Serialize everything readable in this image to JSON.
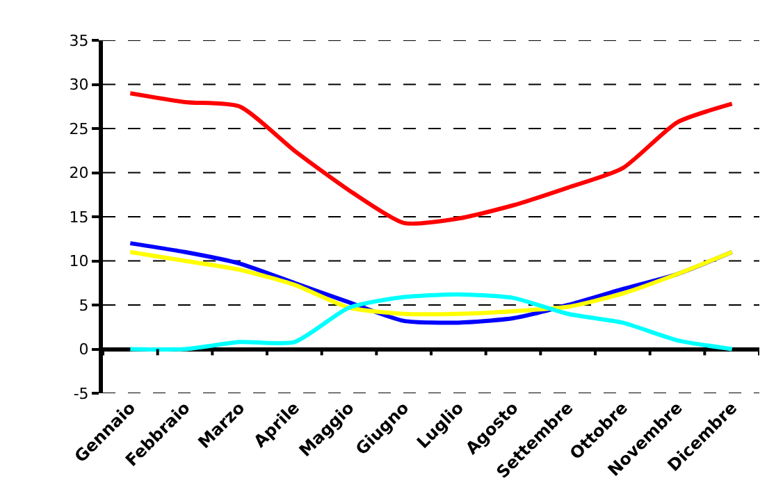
{
  "chart_data": {
    "type": "line",
    "categories": [
      "Gennaio",
      "Febbraio",
      "Marzo",
      "Aprile",
      "Maggio",
      "Giugno",
      "Luglio",
      "Agosto",
      "Settembre",
      "Ottobre",
      "Novembre",
      "Dicembre"
    ],
    "series": [
      {
        "color": "#ff0000",
        "values": [
          29,
          28,
          27.5,
          22.5,
          18,
          14.3,
          14.8,
          16.3,
          18.3,
          20.5,
          25.7,
          27.8
        ]
      },
      {
        "color": "#0000ff",
        "values": [
          12,
          11,
          9.7,
          7.5,
          5.3,
          3.2,
          3,
          3.5,
          5,
          6.8,
          8.5,
          11
        ]
      },
      {
        "color": "#ffff00",
        "values": [
          11,
          10,
          9,
          7.3,
          4.7,
          4,
          4,
          4.3,
          4.8,
          6.3,
          8.5,
          11
        ]
      },
      {
        "color": "#00ffff",
        "values": [
          0,
          0,
          0.8,
          0.8,
          4.7,
          5.9,
          6.2,
          5.8,
          4,
          3,
          1,
          0
        ]
      }
    ],
    "ylim": [
      -5,
      35
    ],
    "yticks": [
      -5,
      0,
      5,
      10,
      15,
      20,
      25,
      30,
      35
    ],
    "grid": "y",
    "marker": "none",
    "line_style": "solid"
  }
}
